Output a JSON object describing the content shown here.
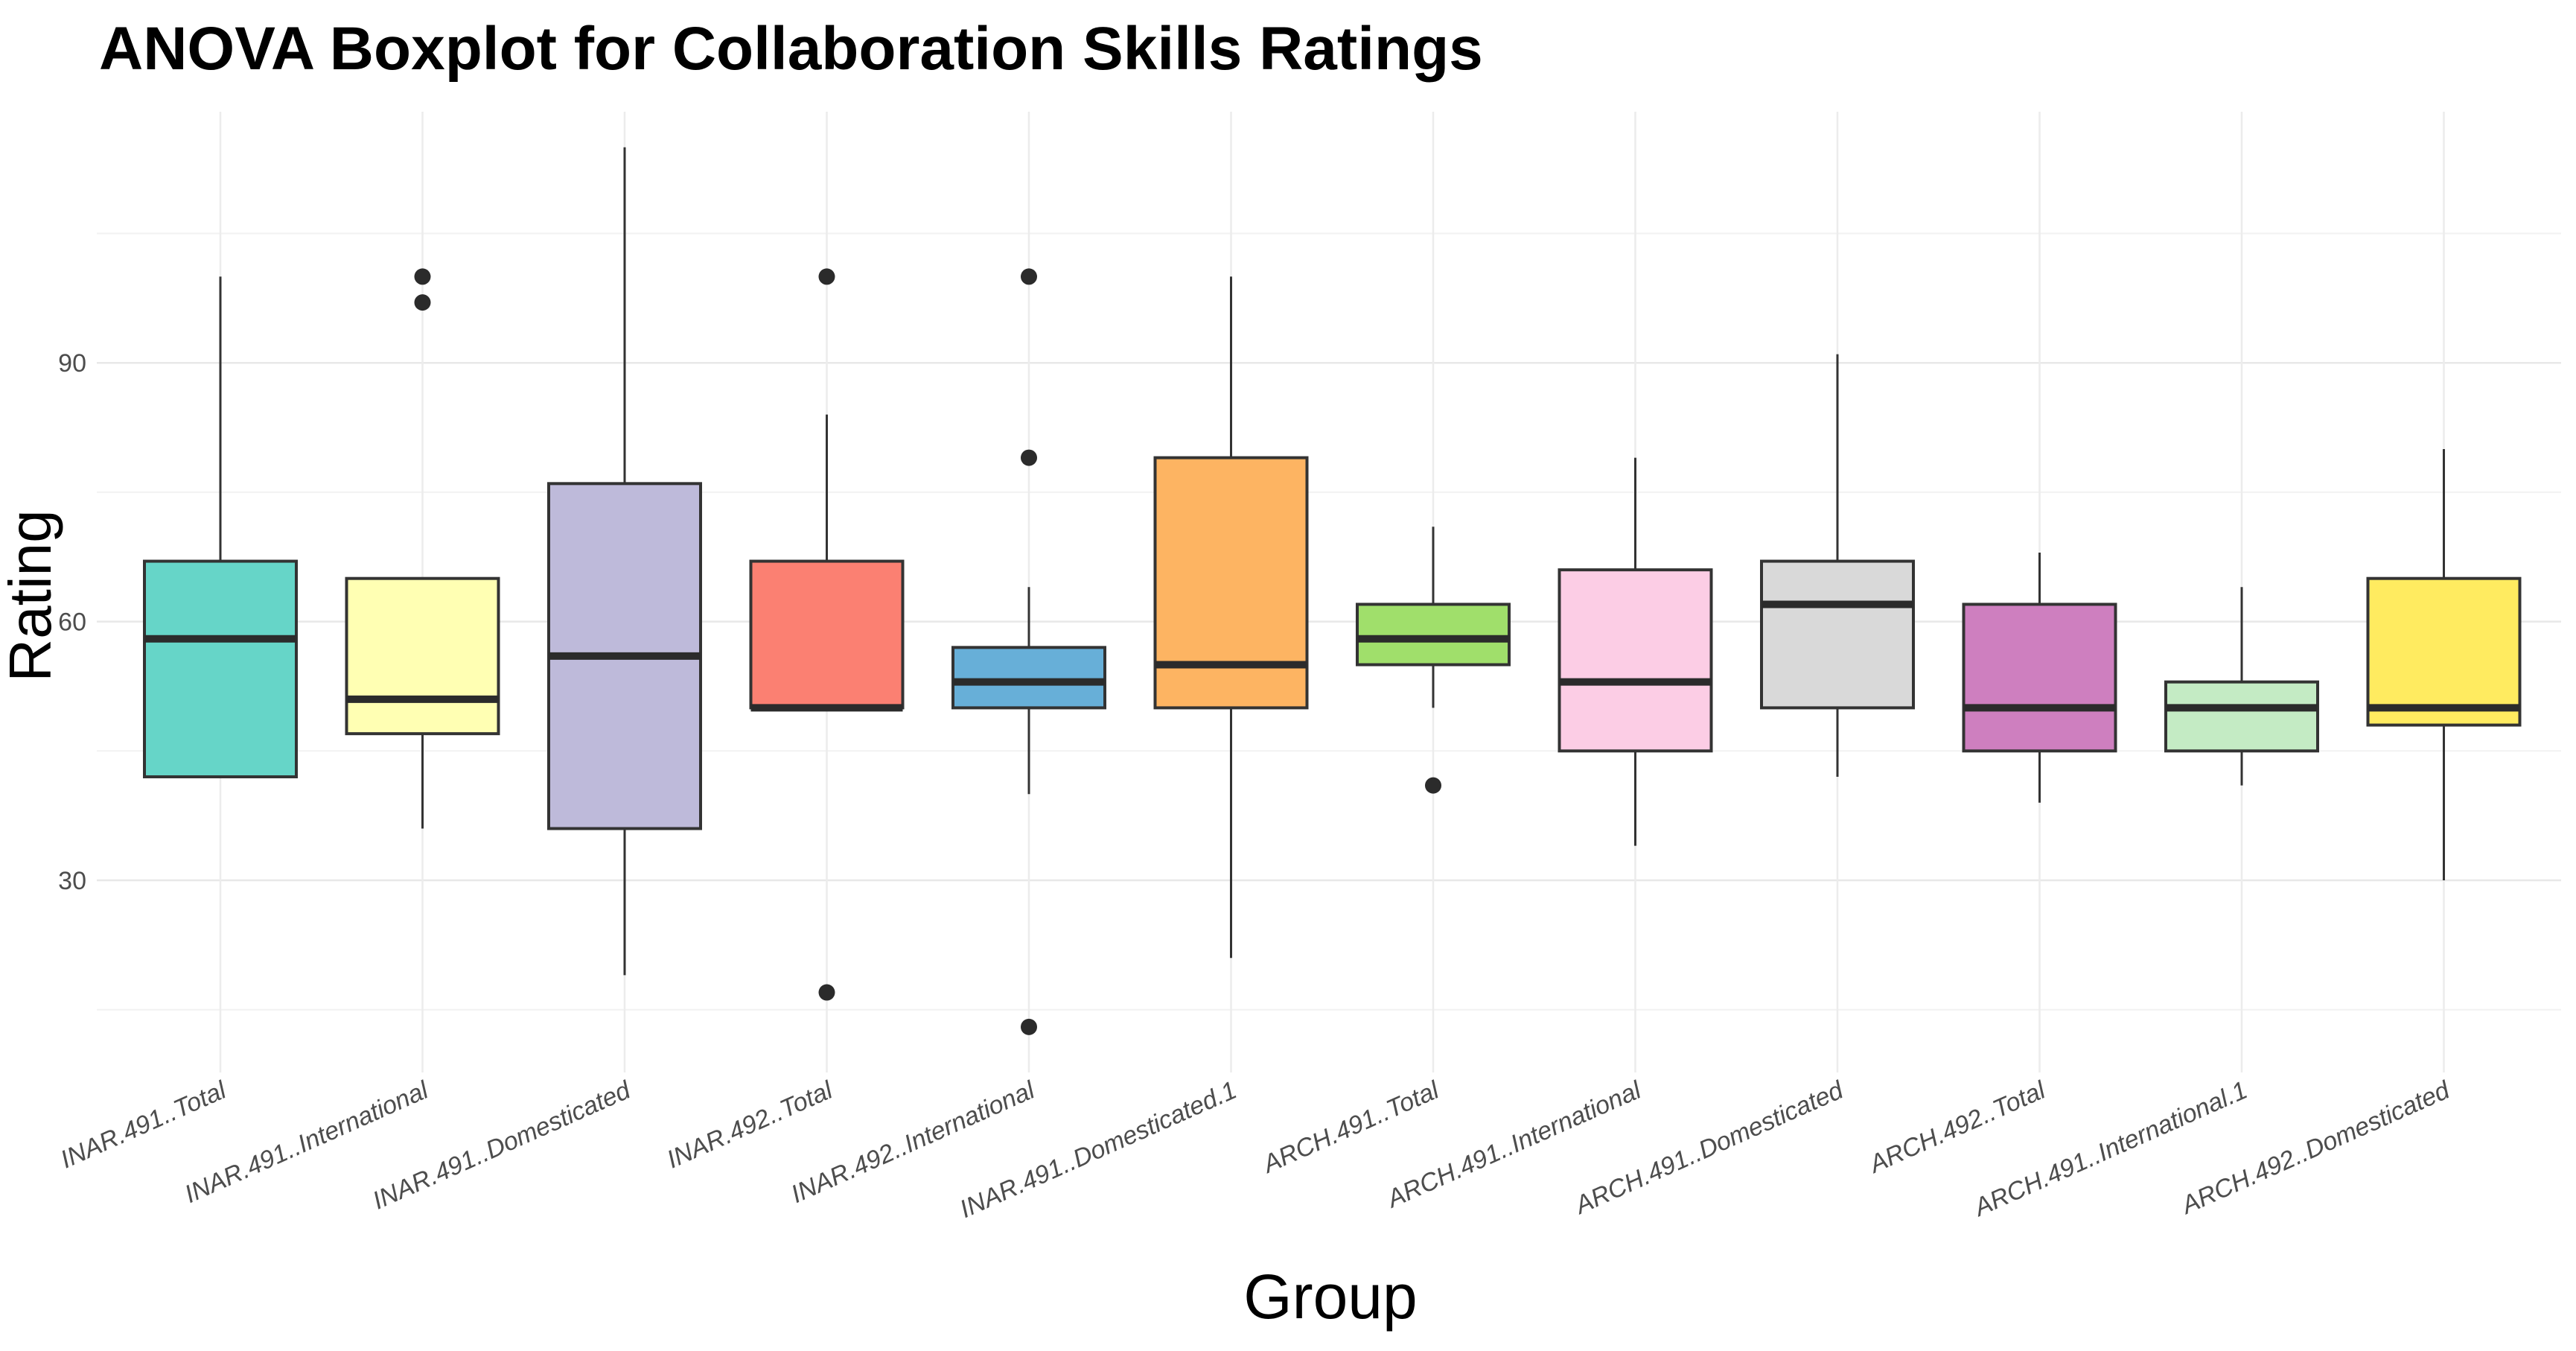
{
  "chart_data": {
    "type": "boxplot",
    "title": "ANOVA Boxplot for Collaboration Skills Ratings",
    "xlabel": "Group",
    "ylabel": "Rating",
    "ylim": [
      7,
      118
    ],
    "yticks": [
      30,
      60,
      90
    ],
    "grid": true,
    "legend": "none",
    "groups": [
      {
        "name": "INAR.491..Total",
        "color": "#66D5C8",
        "whisker_low": 42,
        "q1": 42,
        "median": 58,
        "q3": 67,
        "whisker_high": 100,
        "outliers": []
      },
      {
        "name": "INAR.491..International",
        "color": "#FFFFB3",
        "whisker_low": 36,
        "q1": 47,
        "median": 51,
        "q3": 65,
        "whisker_high": 65,
        "outliers": [
          97,
          100
        ]
      },
      {
        "name": "INAR.491..Domesticated",
        "color": "#BEBADA",
        "whisker_low": 19,
        "q1": 36,
        "median": 56,
        "q3": 76,
        "whisker_high": 115,
        "outliers": []
      },
      {
        "name": "INAR.492..Total",
        "color": "#FB8072",
        "whisker_low": 50,
        "q1": 50,
        "median": 50,
        "q3": 67,
        "whisker_high": 84,
        "outliers": [
          17,
          100
        ]
      },
      {
        "name": "INAR.492..International",
        "color": "#67AFD8",
        "whisker_low": 40,
        "q1": 50,
        "median": 53,
        "q3": 57,
        "whisker_high": 64,
        "outliers": [
          13,
          79,
          100
        ]
      },
      {
        "name": "INAR.491..Domesticated.1",
        "color": "#FDB462",
        "whisker_low": 21,
        "q1": 50,
        "median": 55,
        "q3": 79,
        "whisker_high": 100,
        "outliers": []
      },
      {
        "name": "ARCH.491..Total",
        "color": "#A0DF6B",
        "whisker_low": 50,
        "q1": 55,
        "median": 58,
        "q3": 62,
        "whisker_high": 71,
        "outliers": [
          41
        ]
      },
      {
        "name": "ARCH.491..International",
        "color": "#FCCDE5",
        "whisker_low": 34,
        "q1": 45,
        "median": 53,
        "q3": 66,
        "whisker_high": 79,
        "outliers": []
      },
      {
        "name": "ARCH.491..Domesticated",
        "color": "#D9D9D9",
        "whisker_low": 42,
        "q1": 50,
        "median": 62,
        "q3": 67,
        "whisker_high": 91,
        "outliers": []
      },
      {
        "name": "ARCH.492..Total",
        "color": "#CE7FBF",
        "whisker_low": 39,
        "q1": 45,
        "median": 50,
        "q3": 62,
        "whisker_high": 68,
        "outliers": []
      },
      {
        "name": "ARCH.491..International.1",
        "color": "#C4EBC4",
        "whisker_low": 41,
        "q1": 45,
        "median": 50,
        "q3": 53,
        "whisker_high": 64,
        "outliers": []
      },
      {
        "name": "ARCH.492..Domesticated",
        "color": "#FFEB60",
        "whisker_low": 30,
        "q1": 48,
        "median": 50,
        "q3": 65,
        "whisker_high": 80,
        "outliers": []
      }
    ]
  }
}
